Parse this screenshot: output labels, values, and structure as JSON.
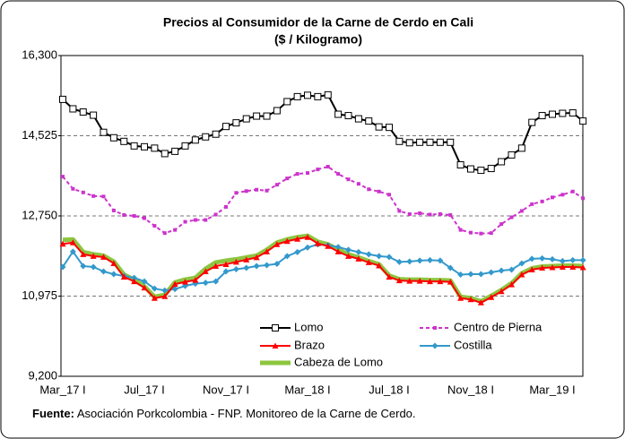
{
  "chart_data": {
    "type": "line",
    "title": "Precios al Consumidor de la Carne de Cerdo en Cali",
    "subtitle": "($ / Kilogramo)",
    "categories": [
      "Mar_17 I",
      null,
      null,
      null,
      null,
      null,
      null,
      null,
      "Jul_17 I",
      null,
      null,
      null,
      null,
      null,
      null,
      null,
      "Nov_17 I",
      null,
      null,
      null,
      null,
      null,
      null,
      null,
      "Mar_18 I",
      null,
      null,
      null,
      null,
      null,
      null,
      null,
      "Jul_18 I",
      null,
      null,
      null,
      null,
      null,
      null,
      null,
      "Nov_18 I",
      null,
      null,
      null,
      null,
      null,
      null,
      null,
      "Mar_19 I",
      null,
      null,
      null
    ],
    "ylim": [
      9200,
      16300
    ],
    "yticks": [
      {
        "value": 9200,
        "label": "9,200"
      },
      {
        "value": 10975,
        "label": "10,975"
      },
      {
        "value": 12750,
        "label": "12,750"
      },
      {
        "value": 14525,
        "label": "14,525"
      },
      {
        "value": 16300,
        "label": "16,300"
      }
    ],
    "grid": true,
    "series": [
      {
        "name": "Lomo",
        "color": "#000000",
        "marker": "square-open",
        "values": [
          15330,
          15120,
          15050,
          14980,
          14600,
          14480,
          14400,
          14300,
          14280,
          14250,
          14130,
          14180,
          14300,
          14430,
          14500,
          14560,
          14730,
          14810,
          14900,
          14960,
          14960,
          15080,
          15280,
          15390,
          15420,
          15390,
          15430,
          15000,
          14970,
          14900,
          14850,
          14720,
          14710,
          14400,
          14370,
          14380,
          14380,
          14380,
          14380,
          13880,
          13790,
          13760,
          13800,
          13950,
          14100,
          14250,
          14820,
          14970,
          15000,
          15020,
          15030,
          14850
        ]
      },
      {
        "name": "Centro de Pierna",
        "color": "#cc33cc",
        "marker": "square",
        "dash": true,
        "values": [
          13620,
          13350,
          13270,
          13190,
          13180,
          12870,
          12770,
          12750,
          12700,
          12530,
          12370,
          12440,
          12620,
          12660,
          12660,
          12780,
          12950,
          13260,
          13300,
          13330,
          13310,
          13440,
          13580,
          13680,
          13700,
          13780,
          13840,
          13680,
          13560,
          13460,
          13340,
          13290,
          13220,
          12860,
          12790,
          12810,
          12780,
          12790,
          12770,
          12440,
          12380,
          12360,
          12370,
          12570,
          12720,
          12860,
          13010,
          13070,
          13160,
          13220,
          13290,
          13140
        ]
      },
      {
        "name": "Brazo",
        "color": "#ff0000",
        "marker": "triangle",
        "values": [
          12130,
          12160,
          11900,
          11860,
          11840,
          11700,
          11400,
          11300,
          11160,
          10930,
          10970,
          11240,
          11290,
          11330,
          11520,
          11640,
          11680,
          11730,
          11780,
          11830,
          11960,
          12120,
          12190,
          12240,
          12280,
          12140,
          12080,
          11960,
          11860,
          11800,
          11720,
          11650,
          11400,
          11320,
          11310,
          11310,
          11300,
          11300,
          11290,
          10930,
          10900,
          10830,
          10950,
          11080,
          11230,
          11450,
          11560,
          11600,
          11610,
          11620,
          11620,
          11610
        ]
      },
      {
        "name": "Costilla",
        "color": "#3399cc",
        "marker": "diamond",
        "values": [
          11620,
          11960,
          11640,
          11620,
          11520,
          11460,
          11420,
          11380,
          11300,
          11140,
          11100,
          11130,
          11200,
          11250,
          11270,
          11300,
          11520,
          11570,
          11600,
          11640,
          11660,
          11690,
          11860,
          11950,
          12050,
          12120,
          12100,
          12060,
          12000,
          11950,
          11900,
          11860,
          11840,
          11730,
          11740,
          11760,
          11770,
          11760,
          11600,
          11450,
          11460,
          11460,
          11500,
          11540,
          11560,
          11700,
          11800,
          11810,
          11790,
          11750,
          11770,
          11770
        ]
      },
      {
        "name": "Cabeza de Lomo",
        "color": "#8cc63f",
        "marker": "none",
        "width": 5,
        "values": [
          12220,
          12230,
          11950,
          11900,
          11870,
          11740,
          11450,
          11340,
          11190,
          10960,
          11000,
          11280,
          11340,
          11380,
          11580,
          11720,
          11760,
          11790,
          11830,
          11870,
          12000,
          12160,
          12230,
          12280,
          12310,
          12180,
          12120,
          12000,
          11900,
          11830,
          11750,
          11680,
          11430,
          11350,
          11340,
          11340,
          11330,
          11330,
          11320,
          10960,
          10930,
          10860,
          10980,
          11110,
          11260,
          11480,
          11590,
          11630,
          11640,
          11650,
          11650,
          11640
        ]
      }
    ],
    "source_label": "Fuente:",
    "source": "Asociación Porkcolombia - FNP.  Monitoreo de la Carne de Cerdo."
  }
}
